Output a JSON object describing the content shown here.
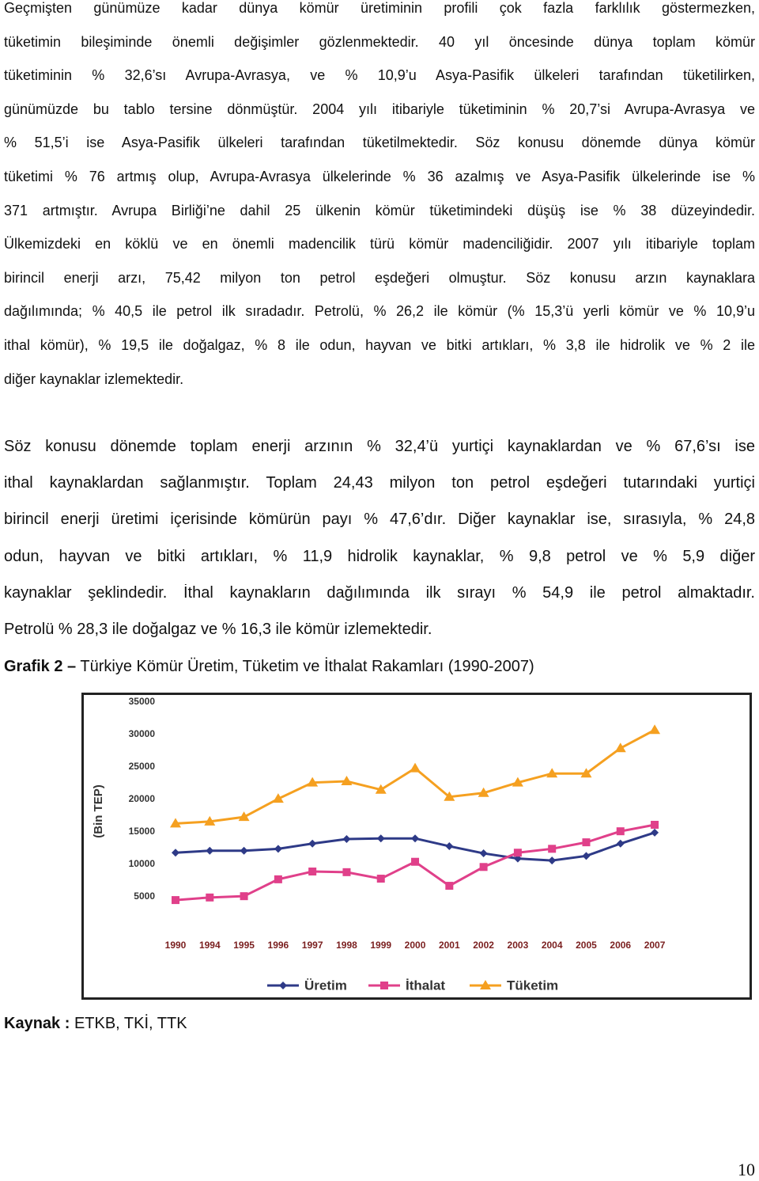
{
  "paragraphs": [
    {
      "lines": [
        "Geçmişten günümüze kadar dünya kömür üretiminin profili çok fazla farklılık göstermezken,",
        "tüketimin bileşiminde önemli değişimler gözlenmektedir. 40 yıl öncesinde dünya toplam kömür",
        "tüketiminin % 32,6’sı Avrupa-Avrasya, ve % 10,9’u Asya-Pasifik ülkeleri tarafından tüketilirken,",
        "günümüzde bu tablo tersine dönmüştür. 2004 yılı itibariyle tüketiminin % 20,7’si Avrupa-Avrasya ve",
        "% 51,5’i ise Asya-Pasifik ülkeleri tarafından tüketilmektedir. Söz konusu dönemde dünya kömür",
        "tüketimi % 76 artmış olup, Avrupa-Avrasya ülkelerinde % 36 azalmış ve Asya-Pasifik ülkelerinde ise %",
        "371 artmıştır. Avrupa Birliği’ne dahil 25 ülkenin kömür tüketimindeki düşüş ise % 38 düzeyindedir.",
        "Ülkemizdeki en köklü ve en önemli madencilik türü kömür madenciliğidir. 2007 yılı itibariyle toplam",
        "birincil enerji arzı, 75,42 milyon ton petrol eşdeğeri olmuştur. Söz konusu arzın kaynaklara",
        "dağılımında; % 40,5 ile petrol ilk sıradadır. Petrolü, % 26,2 ile kömür (% 15,3’ü yerli kömür ve % 10,9’u",
        "ithal kömür), % 19,5 ile doğalgaz, % 8 ile odun, hayvan ve bitki artıkları, % 3,8 ile hidrolik ve % 2 ile",
        "diğer kaynaklar izlemektedir."
      ]
    },
    {
      "lines": [
        "Söz konusu dönemde toplam enerji arzının % 32,4’ü yurtiçi kaynaklardan ve % 67,6’sı ise",
        "ithal kaynaklardan sağlanmıştır. Toplam 24,43 milyon ton petrol eşdeğeri tutarındaki yurtiçi",
        "birincil enerji üretimi içerisinde kömürün payı % 47,6’dır. Diğer kaynaklar ise, sırasıyla, % 24,8",
        "odun, hayvan ve bitki artıkları, % 11,9 hidrolik kaynaklar, % 9,8 petrol ve % 5,9 diğer",
        "kaynaklar şeklindedir. İthal kaynakların dağılımında ilk sırayı % 54,9 ile petrol almaktadır.",
        "Petrolü % 28,3 ile doğalgaz ve % 16,3 ile kömür izlemektedir."
      ]
    }
  ],
  "caption": {
    "label": "Grafik 2 –",
    "text": "Türkiye Kömür Üretim, Tüketim ve İthalat Rakamları (1990-2007)"
  },
  "source": {
    "label": "Kaynak :",
    "text": "ETKB, TKİ, TTK"
  },
  "page_number": "10",
  "chart_data": {
    "type": "line",
    "y_label": "(Bin TEP)",
    "categories": [
      "1990",
      "1994",
      "1995",
      "1996",
      "1997",
      "1998",
      "1999",
      "2000",
      "2001",
      "2002",
      "2003",
      "2004",
      "2005",
      "2006",
      "2007"
    ],
    "series": [
      {
        "name": "Üretim",
        "color": "#2e3a87",
        "marker": "diamond",
        "values": [
          11800,
          12100,
          12100,
          12400,
          13200,
          13900,
          14000,
          14000,
          12800,
          11700,
          10900,
          10600,
          11300,
          13200,
          14900
        ]
      },
      {
        "name": "İthalat",
        "color": "#e0408a",
        "marker": "square",
        "values": [
          4500,
          4900,
          5100,
          7700,
          8900,
          8800,
          7800,
          10400,
          6700,
          9600,
          11800,
          12400,
          13400,
          15100,
          16100
        ]
      },
      {
        "name": "Tüketim",
        "color": "#f5a020",
        "marker": "triangle",
        "values": [
          16300,
          16600,
          17300,
          20100,
          22600,
          22800,
          21500,
          24800,
          20400,
          21000,
          22600,
          24000,
          24000,
          27900,
          30700
        ]
      }
    ],
    "ylim": [
      0,
      35000
    ],
    "yticks": [
      5000,
      10000,
      15000,
      20000,
      25000,
      30000,
      35000
    ],
    "grid": false,
    "legend": "bottom"
  }
}
